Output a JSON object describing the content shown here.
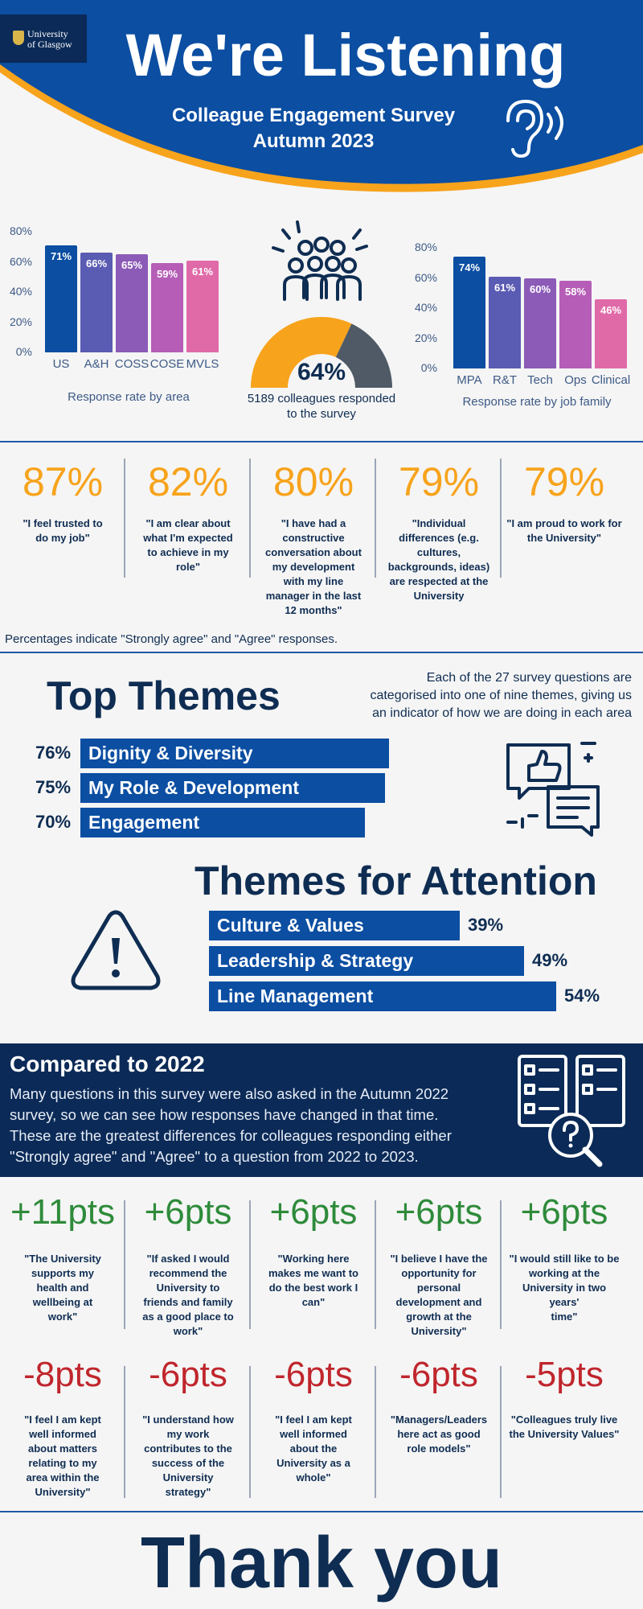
{
  "header": {
    "logo_line1": "University",
    "logo_line2": "of Glasgow",
    "title": "We're Listening",
    "subtitle_line1": "Colleague Engagement Survey",
    "subtitle_line2": "Autumn 2023",
    "icon": "ear-icon"
  },
  "chart_data": [
    {
      "type": "bar",
      "categories": [
        "US",
        "A&H",
        "COSS",
        "COSE",
        "MVLS"
      ],
      "values": [
        71,
        66,
        65,
        59,
        61
      ],
      "value_labels": [
        "71%",
        "66%",
        "65%",
        "59%",
        "61%"
      ],
      "yticks": [
        "0%",
        "20%",
        "40%",
        "60%",
        "80%"
      ],
      "ylim": [
        0,
        80
      ],
      "xlabel": "Response rate by area",
      "colors": [
        "#0b4ea2",
        "#5a5bb2",
        "#8b5bb7",
        "#b55db7",
        "#e06aa8"
      ]
    },
    {
      "type": "bar",
      "categories": [
        "MPA",
        "R&T",
        "Tech",
        "Ops",
        "Clinical"
      ],
      "values": [
        74,
        61,
        60,
        58,
        46
      ],
      "value_labels": [
        "74%",
        "61%",
        "60%",
        "58%",
        "46%"
      ],
      "yticks": [
        "0%",
        "20%",
        "40%",
        "60%",
        "80%"
      ],
      "ylim": [
        0,
        80
      ],
      "xlabel": "Response rate by job family",
      "colors": [
        "#0b4ea2",
        "#5a5bb2",
        "#8b5bb7",
        "#b55db7",
        "#e06aa8"
      ]
    }
  ],
  "overall": {
    "value": 64,
    "label": "64%",
    "caption_line1": "5189 colleagues responded",
    "caption_line2": "to the survey",
    "gauge_color": "#f7a31c",
    "rest_color": "#4f5a66",
    "icon": "people-group-icon"
  },
  "top_stats": [
    {
      "pct": "87%",
      "quote_lines": [
        "\"I feel trusted to",
        "do my job\""
      ]
    },
    {
      "pct": "82%",
      "quote_lines": [
        "\"I am clear about",
        "what I'm expected",
        "to achieve in my",
        "role\""
      ]
    },
    {
      "pct": "80%",
      "quote_lines": [
        "\"I have had a",
        "constructive",
        "conversation about",
        "my development",
        "with my line",
        "manager in the last",
        "12 months\""
      ]
    },
    {
      "pct": "79%",
      "quote_lines": [
        "\"Individual",
        "differences (e.g.",
        "cultures,",
        "backgrounds, ideas)",
        "are respected at the",
        "University"
      ]
    },
    {
      "pct": "79%",
      "quote_lines": [
        "\"I am proud to work for",
        "the University\""
      ]
    }
  ],
  "stats_note": "Percentages indicate \"Strongly agree\" and \"Agree\" responses.",
  "top_themes": {
    "title": "Top Themes",
    "desc_lines": [
      "Each of the 27 survey questions are",
      "categorised into one of nine themes, giving us",
      "an indicator of how we are doing in each area"
    ],
    "items": [
      {
        "pct": "76%",
        "value": 76,
        "label": "Dignity & Diversity"
      },
      {
        "pct": "75%",
        "value": 75,
        "label": "My Role & Development"
      },
      {
        "pct": "70%",
        "value": 70,
        "label": "Engagement"
      }
    ],
    "icon": "thumbs-up-chat-icon"
  },
  "attention": {
    "title": "Themes for Attention",
    "items": [
      {
        "pct": "39%",
        "value": 39,
        "label": "Culture & Values"
      },
      {
        "pct": "49%",
        "value": 49,
        "label": "Leadership & Strategy"
      },
      {
        "pct": "54%",
        "value": 54,
        "label": "Line Management"
      }
    ],
    "icon": "warning-icon"
  },
  "compared": {
    "title": "Compared to 2022",
    "body_lines": [
      "Many questions in this survey were also asked in the Autumn 2022",
      "survey, so we can see how responses have changed in that time.",
      "These are the greatest differences for colleagues responding either",
      "\"Strongly agree\" and \"Agree\" to a question from 2022 to 2023."
    ],
    "icon": "checklist-search-icon"
  },
  "increases": [
    {
      "pts": "+11pts",
      "quote_lines": [
        "\"The University",
        "supports my",
        "health and",
        "wellbeing at",
        "work\""
      ]
    },
    {
      "pts": "+6pts",
      "quote_lines": [
        "\"If asked I would",
        "recommend the",
        "University to",
        "friends and family",
        "as a good place to",
        "work\""
      ]
    },
    {
      "pts": "+6pts",
      "quote_lines": [
        "\"Working here",
        "makes me want to",
        "do the best work I",
        "can\""
      ]
    },
    {
      "pts": "+6pts",
      "quote_lines": [
        "\"I believe I have the",
        "opportunity for",
        "personal",
        "development and",
        "growth at the",
        "University\""
      ]
    },
    {
      "pts": "+6pts",
      "quote_lines": [
        "\"I would still like to be",
        "working at the",
        "University in two years'",
        "time\""
      ]
    }
  ],
  "decreases": [
    {
      "pts": "-8pts",
      "quote_lines": [
        "\"I feel I am kept",
        "well informed",
        "about matters",
        "relating to my",
        "area within the",
        "University\""
      ]
    },
    {
      "pts": "-6pts",
      "quote_lines": [
        "\"I understand how",
        "my work",
        "contributes to the",
        "success of the",
        "University",
        "strategy\""
      ]
    },
    {
      "pts": "-6pts",
      "quote_lines": [
        "\"I feel I am kept",
        "well informed",
        "about the",
        "University as a",
        "whole\""
      ]
    },
    {
      "pts": "-6pts",
      "quote_lines": [
        "\"Managers/Leaders",
        "here act as good",
        "role models\""
      ]
    },
    {
      "pts": "-5pts",
      "quote_lines": [
        "\"Colleagues truly live",
        "the University Values\""
      ]
    }
  ],
  "footer": {
    "thanks": "Thank you"
  }
}
